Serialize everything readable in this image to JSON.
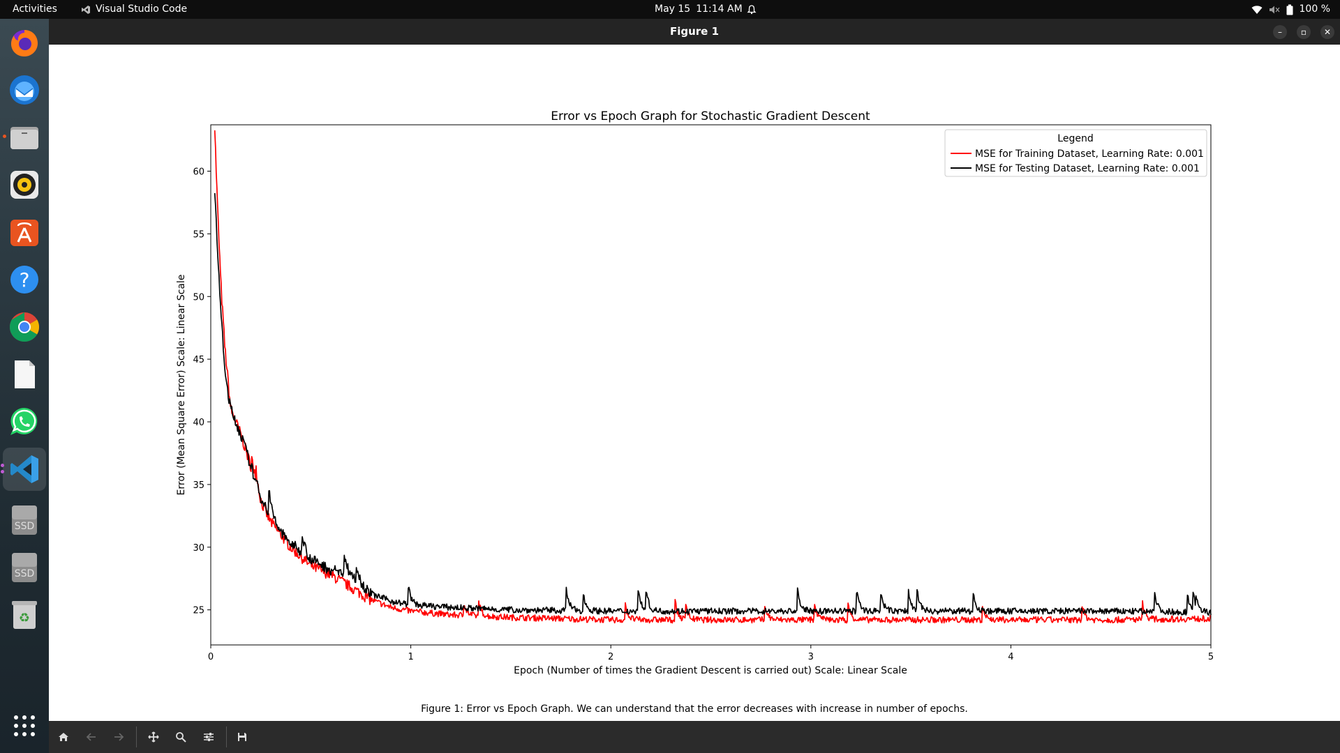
{
  "topbar": {
    "activities": "Activities",
    "app_name": "Visual Studio Code",
    "date": "May 15",
    "time": "11:14 AM",
    "battery": "100 %"
  },
  "window": {
    "title": "Figure 1",
    "caption": "Figure 1: Error vs Epoch Graph. We can understand that the error decreases with increase in number of epochs."
  },
  "dock": {
    "items": [
      {
        "name": "firefox-icon"
      },
      {
        "name": "thunderbird-icon"
      },
      {
        "name": "files-icon"
      },
      {
        "name": "rhythmbox-icon"
      },
      {
        "name": "app-center-icon"
      },
      {
        "name": "help-icon"
      },
      {
        "name": "chrome-icon"
      },
      {
        "name": "text-editor-icon"
      },
      {
        "name": "whatsapp-icon"
      },
      {
        "name": "vscode-icon"
      },
      {
        "name": "ssd-drive-icon",
        "label": "SSD"
      },
      {
        "name": "ssd-drive-icon-2",
        "label": "SSD"
      },
      {
        "name": "trash-icon"
      },
      {
        "name": "show-apps-icon"
      }
    ]
  },
  "chart_data": {
    "type": "line",
    "title": "Error vs Epoch Graph for Stochastic Gradient Descent",
    "xlabel": "Epoch (Number of times the Gradient Descent is carried out) Scale: Linear Scale",
    "ylabel": "Error (Mean Square Error) Scale: Linear Scale",
    "xlim": [
      0,
      5
    ],
    "ylim": [
      22.2,
      63.7
    ],
    "xticks": [
      0,
      1,
      2,
      3,
      4,
      5
    ],
    "yticks": [
      25,
      30,
      35,
      40,
      45,
      50,
      55,
      60
    ],
    "grid": false,
    "legend": {
      "title": "Legend",
      "placement": "top-right"
    },
    "series": [
      {
        "name": "MSE for Training Dataset, Learning Rate: 0.001",
        "color": "#ff0000",
        "points": [
          [
            0.02,
            62
          ],
          [
            0.03,
            58
          ],
          [
            0.05,
            51
          ],
          [
            0.07,
            46
          ],
          [
            0.1,
            41
          ],
          [
            0.15,
            39
          ],
          [
            0.2,
            36.5
          ],
          [
            0.25,
            33.5
          ],
          [
            0.3,
            32
          ],
          [
            0.35,
            31
          ],
          [
            0.4,
            30
          ],
          [
            0.5,
            28.5
          ],
          [
            0.6,
            27.8
          ],
          [
            0.7,
            26.8
          ],
          [
            0.8,
            25.8
          ],
          [
            0.9,
            25.2
          ],
          [
            1.0,
            24.9
          ],
          [
            1.2,
            24.6
          ],
          [
            1.5,
            24.4
          ],
          [
            2.0,
            24.2
          ],
          [
            2.5,
            24.2
          ],
          [
            3.0,
            24.2
          ],
          [
            3.5,
            24.2
          ],
          [
            4.0,
            24.2
          ],
          [
            4.5,
            24.2
          ],
          [
            5.0,
            24.3
          ]
        ]
      },
      {
        "name": "MSE for Testing Dataset, Learning Rate: 0.001",
        "color": "#000000",
        "points": [
          [
            0.02,
            58
          ],
          [
            0.03,
            55
          ],
          [
            0.05,
            49
          ],
          [
            0.07,
            44
          ],
          [
            0.1,
            41
          ],
          [
            0.15,
            39
          ],
          [
            0.2,
            36.5
          ],
          [
            0.25,
            34
          ],
          [
            0.3,
            32.5
          ],
          [
            0.35,
            31.2
          ],
          [
            0.4,
            30.3
          ],
          [
            0.5,
            29
          ],
          [
            0.6,
            28.2
          ],
          [
            0.7,
            27.8
          ],
          [
            0.8,
            26.3
          ],
          [
            0.9,
            25.7
          ],
          [
            1.0,
            25.4
          ],
          [
            1.2,
            25.2
          ],
          [
            1.5,
            25.0
          ],
          [
            2.0,
            24.9
          ],
          [
            2.5,
            24.9
          ],
          [
            3.0,
            24.9
          ],
          [
            3.5,
            24.9
          ],
          [
            4.0,
            24.9
          ],
          [
            4.5,
            24.9
          ],
          [
            5.0,
            24.8
          ]
        ]
      }
    ]
  }
}
